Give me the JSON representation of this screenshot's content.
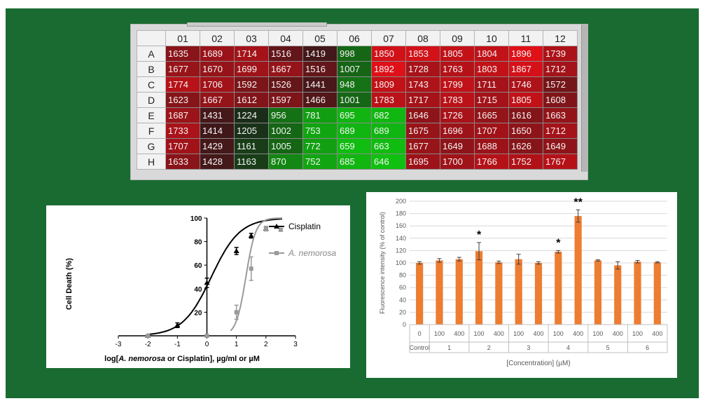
{
  "heatmap": {
    "columns": [
      "01",
      "02",
      "03",
      "04",
      "05",
      "06",
      "07",
      "08",
      "09",
      "10",
      "11",
      "12"
    ],
    "rows": [
      {
        "label": "A",
        "values": [
          1635,
          1689,
          1714,
          1516,
          1419,
          998,
          1850,
          1853,
          1805,
          1804,
          1896,
          1739
        ]
      },
      {
        "label": "B",
        "values": [
          1677,
          1670,
          1699,
          1667,
          1516,
          1007,
          1892,
          1728,
          1763,
          1803,
          1867,
          1712
        ]
      },
      {
        "label": "C",
        "values": [
          1774,
          1706,
          1592,
          1526,
          1441,
          948,
          1809,
          1743,
          1799,
          1711,
          1746,
          1572
        ]
      },
      {
        "label": "D",
        "values": [
          1623,
          1667,
          1612,
          1597,
          1466,
          1001,
          1783,
          1717,
          1783,
          1715,
          1805,
          1608
        ]
      },
      {
        "label": "E",
        "values": [
          1687,
          1431,
          1224,
          956,
          781,
          695,
          682,
          1646,
          1726,
          1665,
          1616,
          1663
        ]
      },
      {
        "label": "F",
        "values": [
          1733,
          1414,
          1205,
          1002,
          753,
          689,
          689,
          1675,
          1696,
          1707,
          1650,
          1712
        ]
      },
      {
        "label": "G",
        "values": [
          1707,
          1429,
          1161,
          1005,
          772,
          659,
          663,
          1677,
          1649,
          1688,
          1626,
          1649
        ]
      },
      {
        "label": "H",
        "values": [
          1633,
          1428,
          1163,
          870,
          752,
          685,
          646,
          1695,
          1700,
          1766,
          1752,
          1767
        ]
      }
    ],
    "colors": {
      "low": "#10c010",
      "mid": "#1a1a1a",
      "high": "#e01018"
    }
  },
  "chart_data": [
    {
      "type": "scatter",
      "title": "",
      "xlabel_prefix": "log[",
      "xlabel_italic": "A. nemorosa",
      "xlabel_suffix": " or Cisplatin], µg/ml or µM",
      "ylabel": "Cell Death (%)",
      "xlim": [
        -3,
        3
      ],
      "ylim": [
        0,
        100
      ],
      "xticks": [
        "-3",
        "-2",
        "-1",
        "0",
        "1",
        "2",
        "3"
      ],
      "yticks": [
        "20",
        "40",
        "60",
        "80",
        "100"
      ],
      "legend_position": "right",
      "series": [
        {
          "name": "Cisplatin",
          "color": "#000000",
          "x": [
            -2,
            -1,
            0,
            1,
            1.5,
            2
          ],
          "y": [
            0,
            9,
            45,
            72,
            85,
            91
          ],
          "err": [
            0,
            2,
            4,
            3,
            2,
            1
          ],
          "fit": {
            "bottom": 0,
            "top": 100,
            "ec50_log": 0.15,
            "hill": 0.9
          }
        },
        {
          "name": "A. nemorosa",
          "color": "#9a9a9a",
          "x": [
            -2,
            0,
            1,
            1.5,
            2,
            2.5
          ],
          "y": [
            0,
            0,
            20,
            57,
            91,
            90
          ],
          "err": [
            0,
            0,
            6,
            10,
            2,
            1
          ],
          "fit": {
            "bottom": 0,
            "top": 100,
            "ec50_log": 1.32,
            "hill": 2.6
          }
        }
      ]
    },
    {
      "type": "bar",
      "title": "",
      "ylabel": "Fluorescence intensity (% of control)",
      "xlabel": "[Concentration] (µM)",
      "ylim": [
        0,
        200
      ],
      "yticks": [
        "0",
        "20",
        "40",
        "60",
        "80",
        "100",
        "120",
        "140",
        "160",
        "180",
        "200"
      ],
      "grid": true,
      "bar_color": "#ed7d31",
      "categories": [
        "0",
        "100",
        "400",
        "100",
        "400",
        "100",
        "400",
        "100",
        "400",
        "100",
        "400",
        "100",
        "400"
      ],
      "groups": [
        {
          "label": "Control",
          "span": 1
        },
        {
          "label": "1",
          "span": 2
        },
        {
          "label": "2",
          "span": 2
        },
        {
          "label": "3",
          "span": 2
        },
        {
          "label": "4",
          "span": 2
        },
        {
          "label": "5",
          "span": 2
        },
        {
          "label": "6",
          "span": 2
        }
      ],
      "values": [
        100,
        104,
        106,
        119,
        101,
        106,
        100,
        118,
        176,
        104,
        96,
        102,
        101
      ],
      "errors": [
        2,
        3,
        3,
        14,
        2,
        8,
        2,
        2,
        10,
        1,
        6,
        2,
        1
      ],
      "annotations": [
        "",
        "",
        "",
        "*",
        "",
        "",
        "",
        "*",
        "**",
        "",
        "",
        "",
        ""
      ]
    }
  ]
}
